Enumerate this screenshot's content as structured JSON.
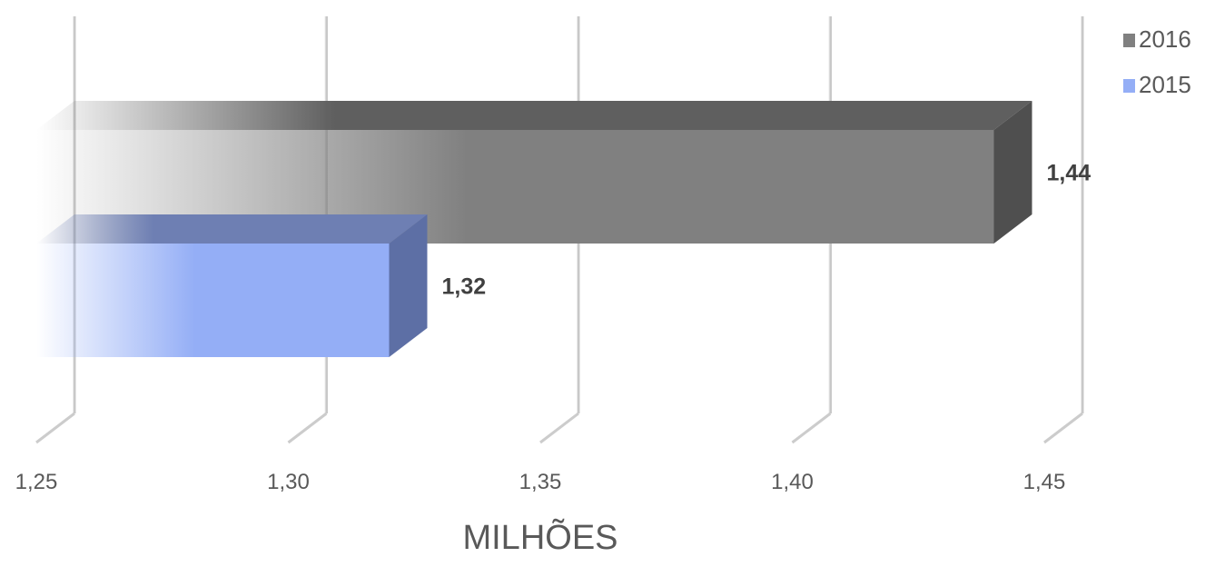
{
  "chart_data": {
    "type": "bar",
    "orientation": "horizontal",
    "style": "3d",
    "xlabel": "MILHÕES",
    "xlim": [
      1.25,
      1.45
    ],
    "xticks": [
      "1,25",
      "1,30",
      "1,35",
      "1,40",
      "1,45"
    ],
    "grid": true,
    "legend_position": "top-right",
    "series": [
      {
        "name": "2016",
        "value": 1.44,
        "label": "1,44",
        "color": "#808080"
      },
      {
        "name": "2015",
        "value": 1.32,
        "label": "1,32",
        "color": "#94aef6"
      }
    ]
  }
}
